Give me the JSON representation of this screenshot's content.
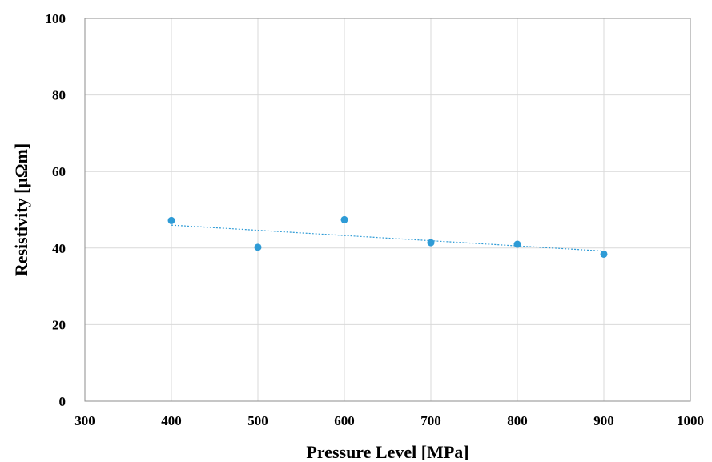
{
  "chart_data": {
    "type": "scatter",
    "title": "",
    "xlabel": "Pressure Level [MPa]",
    "ylabel": "Resistivity [μΩm]",
    "xlim": [
      300,
      1000
    ],
    "ylim": [
      0,
      100
    ],
    "x_ticks": [
      300,
      400,
      500,
      600,
      700,
      800,
      900,
      1000
    ],
    "y_ticks": [
      0,
      20,
      40,
      60,
      80,
      100
    ],
    "grid": true,
    "legend": "none",
    "series": [
      {
        "x": [
          400,
          500,
          600,
          700,
          800,
          900
        ],
        "y": [
          47.2,
          40.2,
          47.4,
          41.4,
          41.0,
          38.4
        ],
        "color": "#2e9bd6"
      }
    ],
    "trendline": {
      "type": "linear",
      "color": "#2e9bd6",
      "style": "dotted"
    }
  }
}
